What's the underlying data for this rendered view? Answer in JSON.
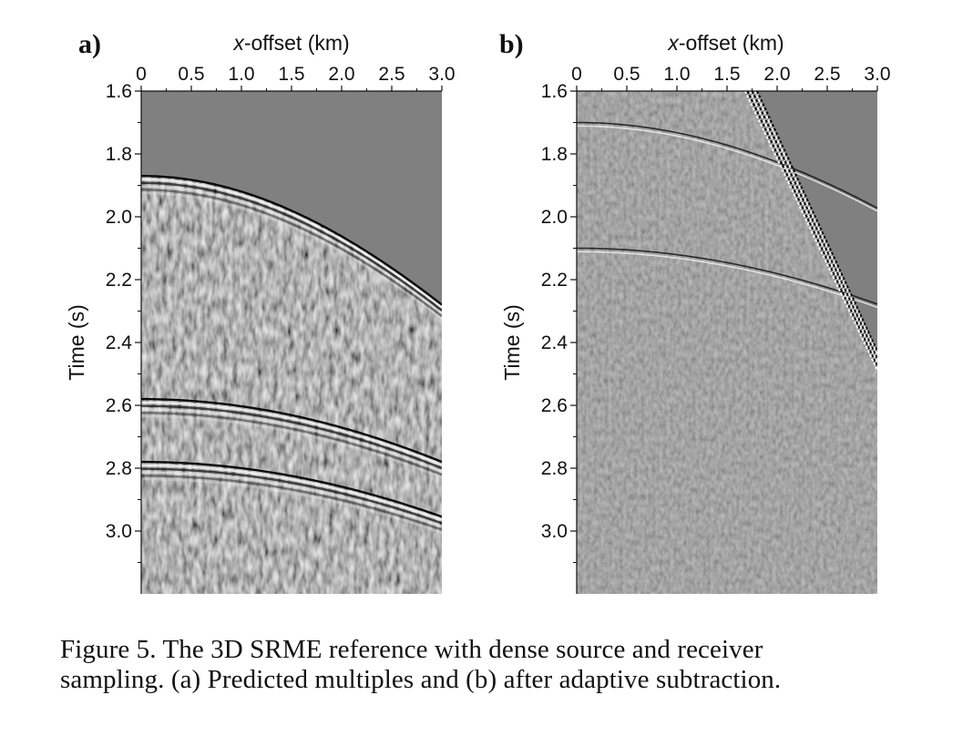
{
  "figure": {
    "panels": [
      {
        "label": "a)",
        "xlabel_prefix": "x",
        "xlabel_rest": "-offset (km)",
        "ylabel": "Time (s)",
        "xticks": [
          "0",
          "0.5",
          "1.0",
          "1.5",
          "2.0",
          "2.5",
          "3.0"
        ],
        "yticks": [
          "1.6",
          "1.8",
          "2.0",
          "2.2",
          "2.4",
          "2.6",
          "2.8",
          "3.0"
        ],
        "events": [
          {
            "type": "hyperbola",
            "t0": 1.87,
            "v": 2.3,
            "strong": true
          },
          {
            "type": "hyperbola",
            "t0": 2.58,
            "v": 2.9,
            "strong": true
          },
          {
            "type": "hyperbola",
            "t0": 2.78,
            "v": 3.0,
            "strong": true
          }
        ]
      },
      {
        "label": "b)",
        "xlabel_prefix": "x",
        "xlabel_rest": "-offset (km)",
        "ylabel": "Time (s)",
        "xticks": [
          "0",
          "0.5",
          "1.0",
          "1.5",
          "2.0",
          "2.5",
          "3.0"
        ],
        "yticks": [
          "1.6",
          "1.8",
          "2.0",
          "2.2",
          "2.4",
          "2.6",
          "2.8",
          "3.0"
        ],
        "events": [
          {
            "type": "hyperbola",
            "t0": 1.7,
            "v": 3.0,
            "strong": false
          },
          {
            "type": "hyperbola",
            "t0": 2.1,
            "v": 3.4,
            "strong": false
          },
          {
            "type": "direct",
            "x0": 1.8,
            "t_at_x0": 1.6,
            "slope": 0.69
          }
        ]
      }
    ],
    "x_range": [
      0,
      3.0
    ],
    "t_range": [
      1.6,
      3.2
    ],
    "colors": {
      "background": "#808080",
      "ink": "#111111"
    }
  },
  "caption": {
    "line1": "Figure 5. The 3D SRME reference with dense source and receiver",
    "line2": "sampling. (a) Predicted multiples and (b) after adaptive subtraction."
  }
}
